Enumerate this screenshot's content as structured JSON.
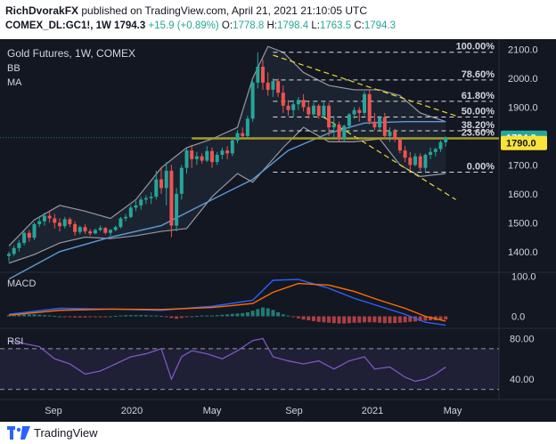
{
  "header": {
    "author": "RichDvorakFX",
    "published_text": "published on TradingView.com, April 21, 2021 21:10:05 UTC",
    "symbol_line": "COMEX_DL:GC1!, 1W",
    "last": "1794.3",
    "change": "+15.9 (+0.89%)",
    "o_label": "O:",
    "o": "1778.8",
    "h_label": "H:",
    "h": "1798.4",
    "l_label": "L:",
    "l": "1763.5",
    "c_label": "C:",
    "c": "1794.3"
  },
  "legend": {
    "title": "Gold Futures, 1W, COMEX",
    "bb": "BB",
    "ma": "MA",
    "macd": "MACD",
    "rsi": "RSI"
  },
  "footer": {
    "brand": "TradingView"
  },
  "colors": {
    "background": "#131722",
    "up": "#26a69a",
    "down": "#ef5350",
    "bb": "#9598a1",
    "ma": "#5d9ad6",
    "fib": "#ffffff",
    "trendline": "#e8d932",
    "support": "#b09a1e",
    "macd": "#2962ff",
    "signal": "#ff6d00",
    "rsi": "#7e57c2",
    "last_price_tag": "#26a69a",
    "level_tag": "#f7e339"
  },
  "chart_data": {
    "type": "candlestick",
    "title": "Gold Futures, 1W, COMEX",
    "price_axis": {
      "ylim": [
        1350,
        2120
      ],
      "ticks": [
        "1400.0",
        "1500.0",
        "1600.0",
        "1700.0",
        "1800.0",
        "1900.0",
        "2000.0",
        "2100.0"
      ]
    },
    "time_axis": {
      "ticks": [
        "Sep",
        "2020",
        "May",
        "Sep",
        "2021",
        "May"
      ]
    },
    "last_price": "1794.3",
    "marked_level": "1790.0",
    "fib_levels": [
      {
        "label": "100.00%",
        "price": 2090
      },
      {
        "label": "78.60%",
        "price": 1994
      },
      {
        "label": "61.80%",
        "price": 1920
      },
      {
        "label": "50.00%",
        "price": 1866
      },
      {
        "label": "38.20%",
        "price": 1818
      },
      {
        "label": "23.60%",
        "price": 1792
      },
      {
        "label": "0.00%",
        "price": 1675
      }
    ],
    "ohlc": [
      [
        1385,
        1400,
        1365,
        1392
      ],
      [
        1392,
        1420,
        1385,
        1412
      ],
      [
        1412,
        1440,
        1400,
        1430
      ],
      [
        1430,
        1470,
        1422,
        1465
      ],
      [
        1465,
        1475,
        1435,
        1448
      ],
      [
        1448,
        1500,
        1440,
        1495
      ],
      [
        1495,
        1520,
        1485,
        1505
      ],
      [
        1505,
        1535,
        1490,
        1524
      ],
      [
        1524,
        1540,
        1500,
        1515
      ],
      [
        1515,
        1530,
        1480,
        1500
      ],
      [
        1500,
        1515,
        1470,
        1488
      ],
      [
        1488,
        1520,
        1480,
        1512
      ],
      [
        1512,
        1518,
        1485,
        1495
      ],
      [
        1495,
        1505,
        1455,
        1468
      ],
      [
        1468,
        1490,
        1460,
        1485
      ],
      [
        1485,
        1495,
        1462,
        1470
      ],
      [
        1470,
        1478,
        1455,
        1463
      ],
      [
        1463,
        1480,
        1460,
        1475
      ],
      [
        1475,
        1490,
        1470,
        1482
      ],
      [
        1482,
        1485,
        1460,
        1465
      ],
      [
        1465,
        1478,
        1455,
        1475
      ],
      [
        1475,
        1490,
        1470,
        1485
      ],
      [
        1485,
        1520,
        1480,
        1515
      ],
      [
        1515,
        1530,
        1505,
        1520
      ],
      [
        1520,
        1560,
        1515,
        1552
      ],
      [
        1552,
        1575,
        1540,
        1560
      ],
      [
        1560,
        1590,
        1545,
        1580
      ],
      [
        1580,
        1595,
        1565,
        1585
      ],
      [
        1585,
        1605,
        1565,
        1590
      ],
      [
        1590,
        1680,
        1580,
        1650
      ],
      [
        1650,
        1690,
        1600,
        1620
      ],
      [
        1620,
        1710,
        1560,
        1680
      ],
      [
        1680,
        1700,
        1450,
        1490
      ],
      [
        1490,
        1620,
        1470,
        1600
      ],
      [
        1600,
        1700,
        1580,
        1690
      ],
      [
        1690,
        1760,
        1670,
        1750
      ],
      [
        1750,
        1770,
        1690,
        1720
      ],
      [
        1720,
        1745,
        1700,
        1730
      ],
      [
        1730,
        1740,
        1705,
        1715
      ],
      [
        1715,
        1765,
        1710,
        1748
      ],
      [
        1748,
        1760,
        1690,
        1710
      ],
      [
        1710,
        1745,
        1700,
        1735
      ],
      [
        1735,
        1760,
        1720,
        1750
      ],
      [
        1750,
        1765,
        1720,
        1740
      ],
      [
        1740,
        1790,
        1730,
        1785
      ],
      [
        1785,
        1820,
        1775,
        1810
      ],
      [
        1810,
        1830,
        1795,
        1800
      ],
      [
        1800,
        1870,
        1795,
        1860
      ],
      [
        1860,
        1990,
        1850,
        1985
      ],
      [
        1985,
        2090,
        1965,
        2040
      ],
      [
        2040,
        2065,
        1960,
        1985
      ],
      [
        1985,
        2020,
        1940,
        1960
      ],
      [
        1960,
        2000,
        1935,
        1990
      ],
      [
        1990,
        2000,
        1935,
        1950
      ],
      [
        1950,
        1975,
        1880,
        1905
      ],
      [
        1905,
        1925,
        1870,
        1890
      ],
      [
        1890,
        1925,
        1865,
        1910
      ],
      [
        1910,
        1935,
        1890,
        1925
      ],
      [
        1925,
        1945,
        1885,
        1900
      ],
      [
        1900,
        1920,
        1860,
        1875
      ],
      [
        1875,
        1915,
        1865,
        1905
      ],
      [
        1905,
        1910,
        1860,
        1870
      ],
      [
        1870,
        1920,
        1860,
        1905
      ],
      [
        1905,
        1915,
        1800,
        1830
      ],
      [
        1830,
        1870,
        1795,
        1840
      ],
      [
        1840,
        1850,
        1780,
        1790
      ],
      [
        1790,
        1840,
        1780,
        1835
      ],
      [
        1835,
        1880,
        1825,
        1875
      ],
      [
        1875,
        1900,
        1860,
        1890
      ],
      [
        1890,
        1900,
        1850,
        1880
      ],
      [
        1880,
        1955,
        1870,
        1945
      ],
      [
        1945,
        1960,
        1840,
        1850
      ],
      [
        1850,
        1880,
        1820,
        1830
      ],
      [
        1830,
        1870,
        1820,
        1865
      ],
      [
        1865,
        1880,
        1790,
        1800
      ],
      [
        1800,
        1830,
        1780,
        1815
      ],
      [
        1815,
        1825,
        1780,
        1788
      ],
      [
        1788,
        1795,
        1740,
        1750
      ],
      [
        1750,
        1765,
        1710,
        1725
      ],
      [
        1725,
        1745,
        1680,
        1700
      ],
      [
        1700,
        1740,
        1695,
        1730
      ],
      [
        1730,
        1740,
        1680,
        1690
      ],
      [
        1690,
        1740,
        1675,
        1735
      ],
      [
        1735,
        1760,
        1720,
        1745
      ],
      [
        1745,
        1760,
        1730,
        1755
      ],
      [
        1755,
        1785,
        1745,
        1779
      ],
      [
        1778.8,
        1798.4,
        1763.5,
        1794.3
      ]
    ],
    "bollinger": {
      "upper": [
        [
          0,
          1420
        ],
        [
          5,
          1510
        ],
        [
          10,
          1560
        ],
        [
          15,
          1540
        ],
        [
          20,
          1515
        ],
        [
          25,
          1580
        ],
        [
          30,
          1690
        ],
        [
          35,
          1760
        ],
        [
          40,
          1790
        ],
        [
          45,
          1830
        ],
        [
          48,
          2000
        ],
        [
          51,
          2110
        ],
        [
          54,
          2090
        ],
        [
          58,
          2020
        ],
        [
          63,
          1975
        ],
        [
          68,
          1960
        ],
        [
          73,
          1960
        ],
        [
          77,
          1940
        ],
        [
          81,
          1880
        ],
        [
          86,
          1850
        ]
      ],
      "lower": [
        [
          0,
          1360
        ],
        [
          5,
          1390
        ],
        [
          10,
          1430
        ],
        [
          15,
          1450
        ],
        [
          20,
          1445
        ],
        [
          25,
          1455
        ],
        [
          30,
          1470
        ],
        [
          35,
          1480
        ],
        [
          40,
          1590
        ],
        [
          45,
          1670
        ],
        [
          48,
          1640
        ],
        [
          51,
          1700
        ],
        [
          54,
          1760
        ],
        [
          58,
          1830
        ],
        [
          63,
          1780
        ],
        [
          68,
          1780
        ],
        [
          73,
          1790
        ],
        [
          77,
          1700
        ],
        [
          81,
          1660
        ],
        [
          86,
          1670
        ]
      ]
    },
    "moving_average": [
      [
        0,
        1305
      ],
      [
        10,
        1400
      ],
      [
        20,
        1450
      ],
      [
        30,
        1490
      ],
      [
        40,
        1580
      ],
      [
        48,
        1650
      ],
      [
        55,
        1750
      ],
      [
        63,
        1810
      ],
      [
        70,
        1845
      ],
      [
        78,
        1850
      ],
      [
        86,
        1850
      ]
    ],
    "macd": {
      "ylim": [
        -30,
        110
      ],
      "ticks": [
        "100.0",
        "0.0"
      ],
      "macd_line": [
        [
          0,
          5
        ],
        [
          10,
          20
        ],
        [
          20,
          18
        ],
        [
          30,
          15
        ],
        [
          40,
          25
        ],
        [
          48,
          40
        ],
        [
          52,
          90
        ],
        [
          57,
          92
        ],
        [
          63,
          70
        ],
        [
          68,
          45
        ],
        [
          73,
          25
        ],
        [
          78,
          5
        ],
        [
          82,
          -15
        ],
        [
          86,
          -22
        ]
      ],
      "signal_line": [
        [
          0,
          3
        ],
        [
          10,
          15
        ],
        [
          20,
          18
        ],
        [
          30,
          17
        ],
        [
          40,
          22
        ],
        [
          48,
          32
        ],
        [
          52,
          60
        ],
        [
          57,
          82
        ],
        [
          63,
          78
        ],
        [
          68,
          62
        ],
        [
          73,
          40
        ],
        [
          78,
          20
        ],
        [
          82,
          0
        ],
        [
          86,
          -12
        ]
      ],
      "histogram": [
        3,
        3,
        4,
        5,
        5,
        5,
        4,
        3,
        2,
        1,
        0,
        -1,
        -2,
        -3,
        -3,
        -3,
        -2,
        -2,
        -1,
        -1,
        0,
        1,
        2,
        3,
        3,
        3,
        3,
        3,
        2,
        2,
        1,
        -1,
        -4,
        -6,
        -4,
        -2,
        0,
        1,
        2,
        2,
        2,
        3,
        4,
        5,
        6,
        7,
        8,
        10,
        14,
        18,
        22,
        20,
        16,
        10,
        5,
        2,
        -2,
        -5,
        -8,
        -10,
        -12,
        -14,
        -15,
        -16,
        -17,
        -18,
        -18,
        -17,
        -16,
        -16,
        -15,
        -15,
        -15,
        -16,
        -17,
        -17,
        -17,
        -16,
        -15,
        -14,
        -13,
        -12,
        -11,
        -10,
        -10,
        -9,
        -8
      ]
    },
    "rsi": {
      "ylim": [
        20,
        90
      ],
      "levels": [
        70,
        30
      ],
      "ticks": [
        "80.00",
        "40.00"
      ],
      "values": [
        [
          0,
          78
        ],
        [
          3,
          75
        ],
        [
          6,
          72
        ],
        [
          9,
          60
        ],
        [
          12,
          55
        ],
        [
          15,
          45
        ],
        [
          18,
          48
        ],
        [
          21,
          55
        ],
        [
          24,
          62
        ],
        [
          27,
          65
        ],
        [
          30,
          70
        ],
        [
          32,
          40
        ],
        [
          34,
          62
        ],
        [
          36,
          68
        ],
        [
          39,
          65
        ],
        [
          42,
          60
        ],
        [
          45,
          68
        ],
        [
          48,
          78
        ],
        [
          50,
          80
        ],
        [
          52,
          62
        ],
        [
          55,
          58
        ],
        [
          58,
          55
        ],
        [
          61,
          58
        ],
        [
          64,
          50
        ],
        [
          67,
          58
        ],
        [
          70,
          62
        ],
        [
          72,
          50
        ],
        [
          75,
          52
        ],
        [
          78,
          42
        ],
        [
          80,
          38
        ],
        [
          82,
          40
        ],
        [
          84,
          45
        ],
        [
          86,
          52
        ]
      ]
    }
  }
}
